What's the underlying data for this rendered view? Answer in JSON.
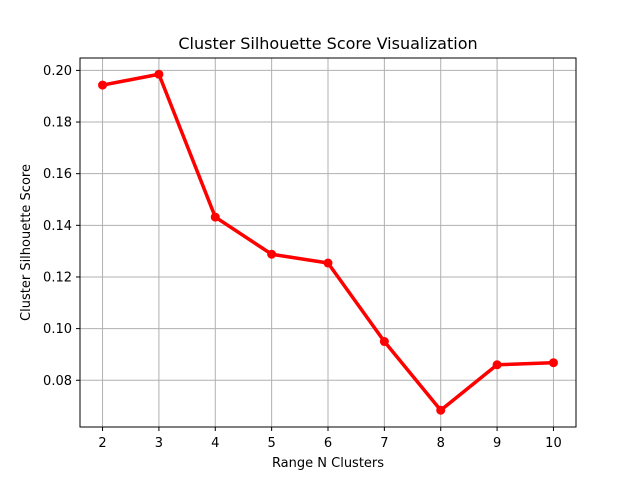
{
  "chart_data": {
    "type": "line",
    "title": "Cluster Silhouette Score Visualization",
    "xlabel": "Range N Clusters",
    "ylabel": "Cluster Silhouette Score",
    "x": [
      2,
      3,
      4,
      5,
      6,
      7,
      8,
      9,
      10
    ],
    "series": [
      {
        "values": [
          0.1943,
          0.1985,
          0.1432,
          0.1288,
          0.1254,
          0.095,
          0.0684,
          0.086,
          0.0868
        ],
        "color": "#ff0000"
      }
    ],
    "xlim": [
      1.6,
      10.4
    ],
    "ylim": [
      0.0619,
      0.2048
    ],
    "xticks": [
      "2",
      "3",
      "4",
      "5",
      "6",
      "7",
      "8",
      "9",
      "10"
    ],
    "yticks": [
      "0.08",
      "0.10",
      "0.12",
      "0.14",
      "0.16",
      "0.18",
      "0.20"
    ],
    "grid": true,
    "legend": "none"
  }
}
